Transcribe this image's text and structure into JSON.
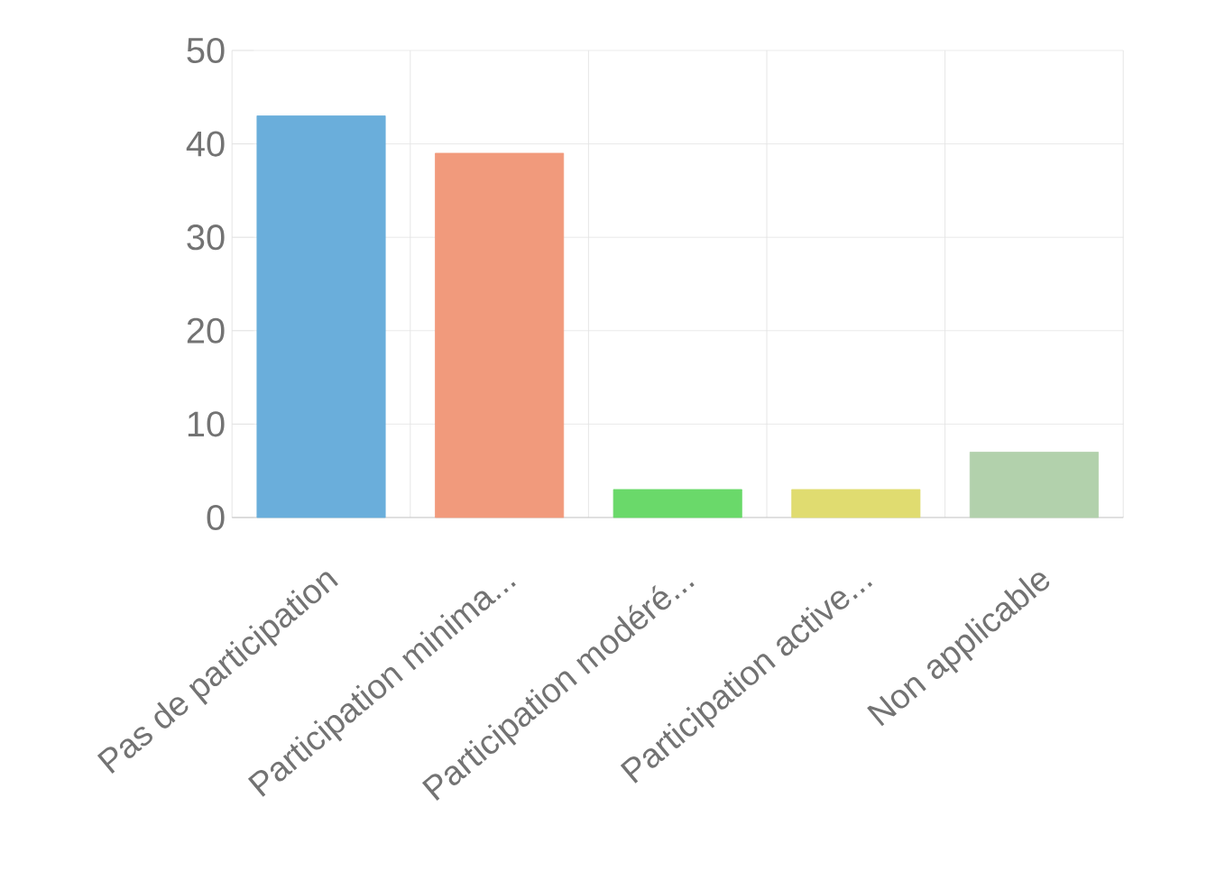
{
  "chart_data": {
    "type": "bar",
    "categories": [
      "Pas de participation",
      "Participation minima...",
      "Participation modéré...",
      "Participation active...",
      "Non applicable"
    ],
    "values": [
      43,
      39,
      3,
      3,
      7
    ],
    "colors": [
      "#6aaedb",
      "#f19a7c",
      "#6ad96a",
      "#e0dc70",
      "#b2d1ac"
    ],
    "ylim": [
      0,
      50
    ],
    "yticks": [
      0,
      10,
      20,
      30,
      40,
      50
    ],
    "grid": true
  }
}
